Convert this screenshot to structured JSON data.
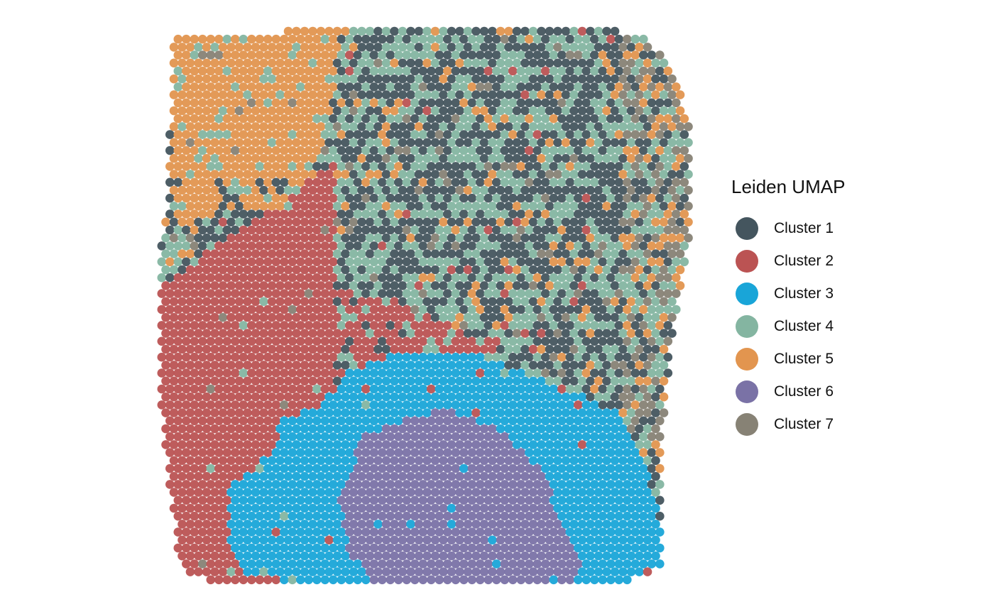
{
  "chart_data": {
    "type": "scatter",
    "title": "",
    "xlabel": "",
    "ylabel": "",
    "grid": false,
    "legend": {
      "title": "Leiden UMAP",
      "placement": "right",
      "entries": [
        {
          "name": "Cluster 1",
          "color": "#44555e"
        },
        {
          "name": "Cluster 2",
          "color": "#bb5353"
        },
        {
          "name": "Cluster 3",
          "color": "#19a5d8"
        },
        {
          "name": "Cluster 4",
          "color": "#84b5a1"
        },
        {
          "name": "Cluster 5",
          "color": "#e2954f"
        },
        {
          "name": "Cluster 6",
          "color": "#7a72a6"
        },
        {
          "name": "Cluster 7",
          "color": "#878275"
        }
      ]
    }
  }
}
